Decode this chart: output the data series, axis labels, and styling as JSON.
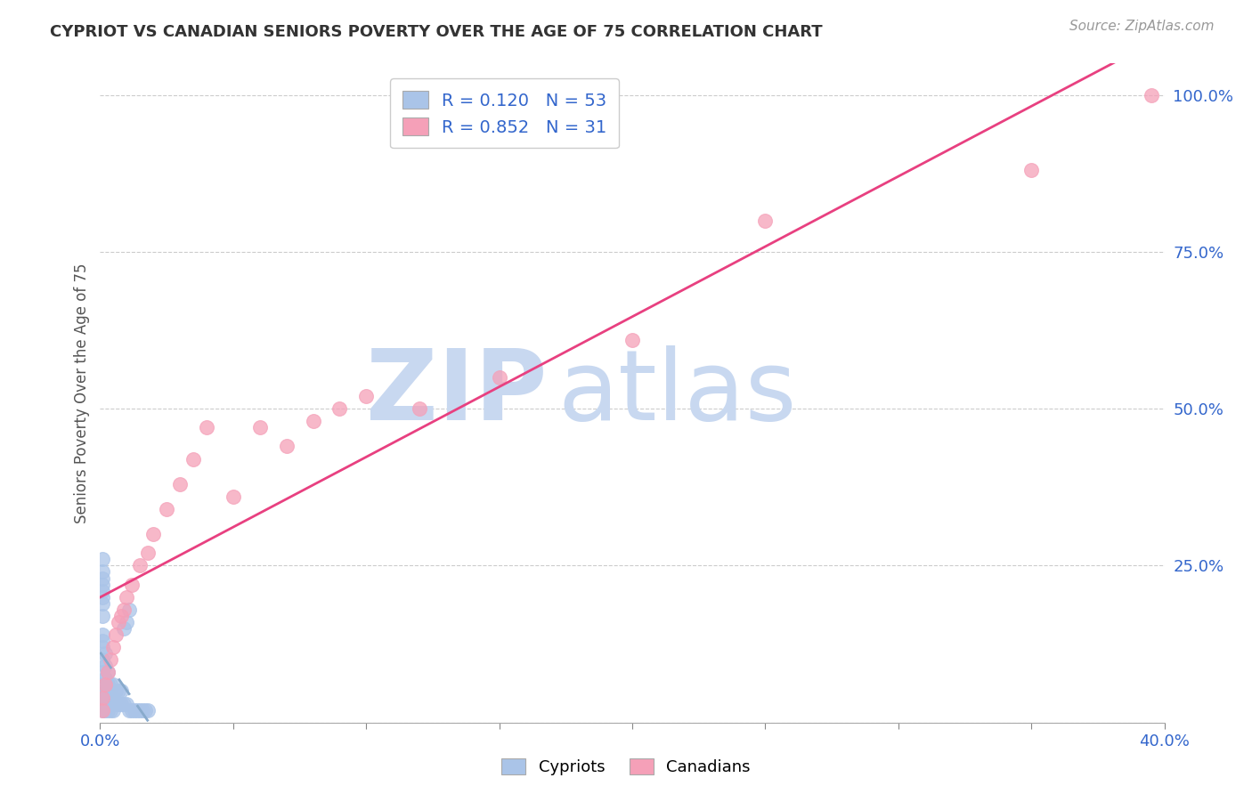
{
  "title": "CYPRIOT VS CANADIAN SENIORS POVERTY OVER THE AGE OF 75 CORRELATION CHART",
  "source": "Source: ZipAtlas.com",
  "ylabel": "Seniors Poverty Over the Age of 75",
  "cypriot_R": 0.12,
  "cypriot_N": 53,
  "canadian_R": 0.852,
  "canadian_N": 31,
  "cypriot_color": "#aac4e8",
  "canadian_color": "#f5a0b8",
  "cypriot_line_color": "#2255aa",
  "canadian_line_color": "#e84080",
  "watermark_zip": "ZIP",
  "watermark_atlas": "atlas",
  "watermark_color": "#c8d8f0",
  "xmin": 0.0,
  "xmax": 0.4,
  "ymin": 0.0,
  "ymax": 1.05,
  "xtick_positions": [
    0.0,
    0.05,
    0.1,
    0.15,
    0.2,
    0.25,
    0.3,
    0.35,
    0.4
  ],
  "xtick_labels_show": {
    "0.0": "0.0%",
    "0.40": "40.0%"
  },
  "yticks_right": [
    0.0,
    0.25,
    0.5,
    0.75,
    1.0
  ],
  "background_color": "#ffffff",
  "grid_color": "#cccccc",
  "cypriot_x": [
    0.001,
    0.001,
    0.001,
    0.001,
    0.001,
    0.001,
    0.001,
    0.001,
    0.002,
    0.002,
    0.002,
    0.002,
    0.002,
    0.002,
    0.003,
    0.003,
    0.003,
    0.003,
    0.004,
    0.004,
    0.004,
    0.005,
    0.005,
    0.005,
    0.006,
    0.006,
    0.007,
    0.007,
    0.008,
    0.008,
    0.009,
    0.009,
    0.01,
    0.01,
    0.011,
    0.011,
    0.012,
    0.013,
    0.014,
    0.015,
    0.016,
    0.017,
    0.018,
    0.001,
    0.001,
    0.001,
    0.001,
    0.001,
    0.001,
    0.001,
    0.001,
    0.001,
    0.001
  ],
  "cypriot_y": [
    0.02,
    0.03,
    0.04,
    0.05,
    0.06,
    0.08,
    0.1,
    0.12,
    0.02,
    0.03,
    0.05,
    0.07,
    0.09,
    0.11,
    0.02,
    0.04,
    0.06,
    0.08,
    0.02,
    0.04,
    0.06,
    0.02,
    0.04,
    0.06,
    0.03,
    0.05,
    0.03,
    0.05,
    0.03,
    0.05,
    0.03,
    0.15,
    0.03,
    0.16,
    0.02,
    0.18,
    0.02,
    0.02,
    0.02,
    0.02,
    0.02,
    0.02,
    0.02,
    0.13,
    0.17,
    0.19,
    0.21,
    0.22,
    0.23,
    0.24,
    0.26,
    0.14,
    0.2
  ],
  "canadian_x": [
    0.001,
    0.001,
    0.002,
    0.003,
    0.004,
    0.005,
    0.006,
    0.007,
    0.008,
    0.009,
    0.01,
    0.012,
    0.015,
    0.018,
    0.02,
    0.025,
    0.03,
    0.035,
    0.04,
    0.05,
    0.06,
    0.07,
    0.08,
    0.09,
    0.1,
    0.12,
    0.15,
    0.2,
    0.25,
    0.35,
    0.395
  ],
  "canadian_y": [
    0.02,
    0.04,
    0.06,
    0.08,
    0.1,
    0.12,
    0.14,
    0.16,
    0.17,
    0.18,
    0.2,
    0.22,
    0.25,
    0.27,
    0.3,
    0.34,
    0.38,
    0.42,
    0.47,
    0.36,
    0.47,
    0.44,
    0.48,
    0.5,
    0.52,
    0.5,
    0.55,
    0.61,
    0.8,
    0.88,
    1.0
  ]
}
